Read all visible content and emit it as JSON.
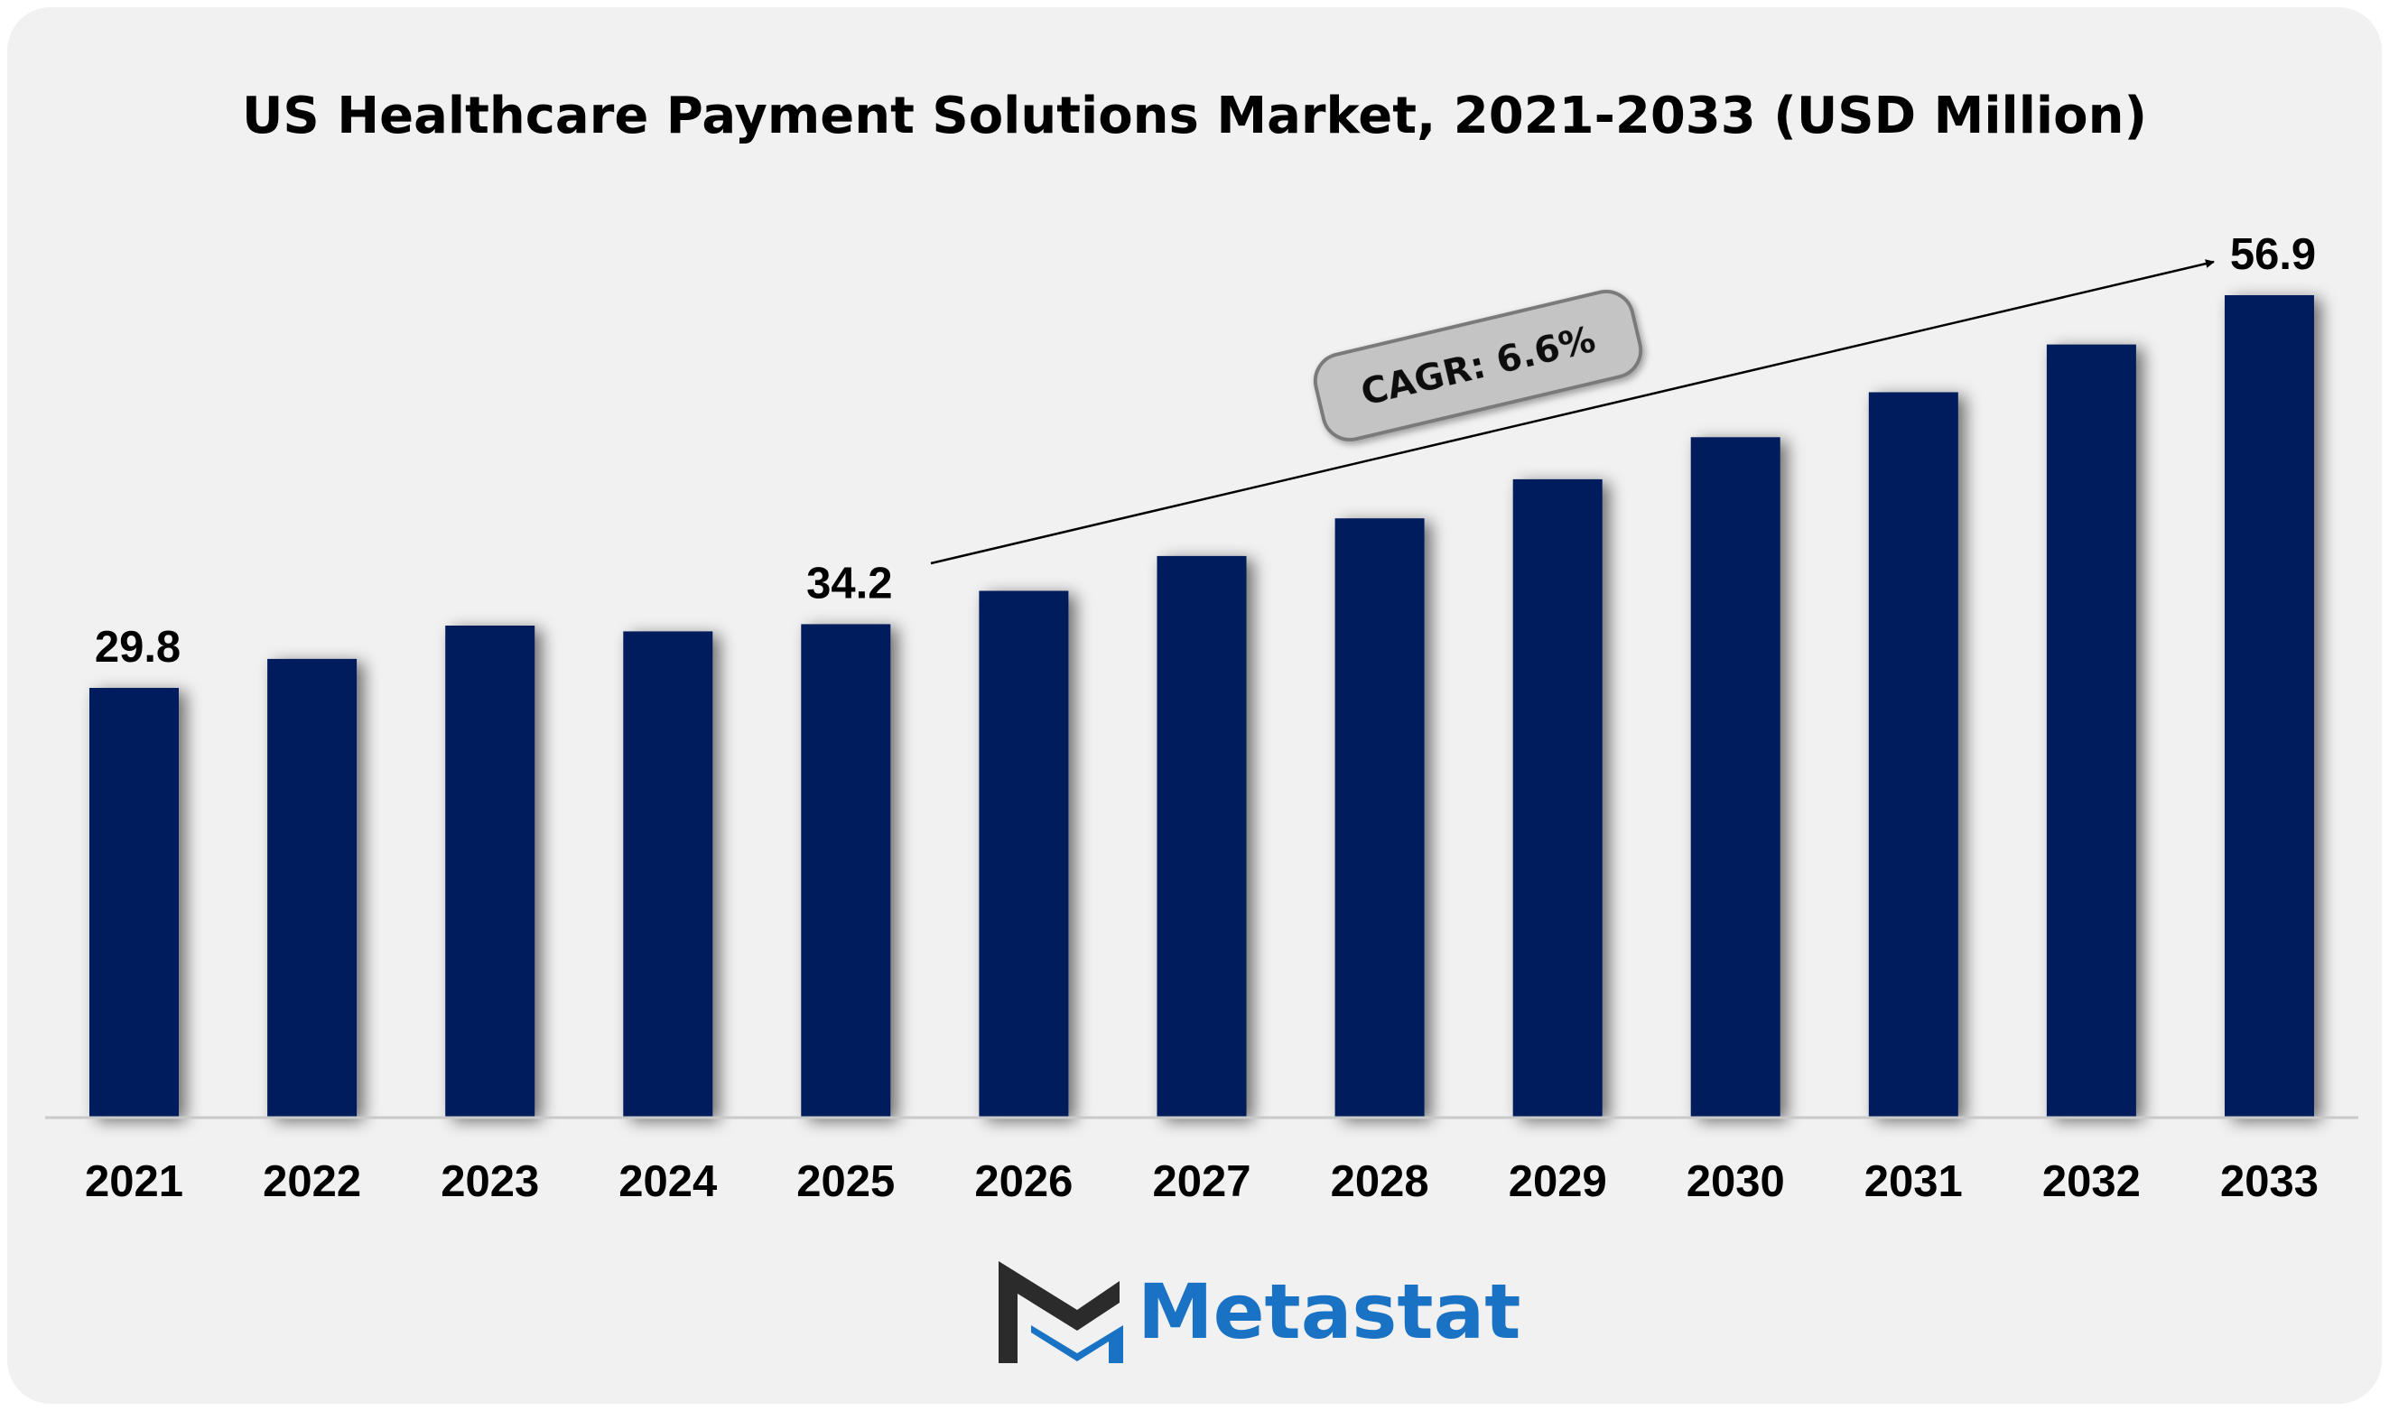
{
  "chart_data": {
    "type": "bar",
    "title": "US Healthcare Payment Solutions Market, 2021-2033 (USD Million)",
    "categories": [
      "2021",
      "2022",
      "2023",
      "2024",
      "2025",
      "2026",
      "2027",
      "2028",
      "2029",
      "2030",
      "2031",
      "2032",
      "2033"
    ],
    "values": [
      29.8,
      31.8,
      34.1,
      33.7,
      34.2,
      36.5,
      38.9,
      41.5,
      44.2,
      47.1,
      50.2,
      53.5,
      56.9
    ],
    "data_labels": {
      "2021": "29.8",
      "2025": "34.2",
      "2033": "56.9"
    },
    "annotation": "CAGR: 6.6%",
    "ylim": [
      0,
      58
    ],
    "bar_color": "#001f5c",
    "grid": false,
    "legend": "none"
  },
  "logo": {
    "text": "Metastat",
    "text_color": "#1a72c4",
    "mark_dark": "#2b2b2b",
    "mark_blue": "#1a72c4"
  },
  "colors": {
    "background": "#f1f1f1",
    "cagr_pill": "#c4c4c4",
    "cagr_border": "#7a7a7a"
  }
}
